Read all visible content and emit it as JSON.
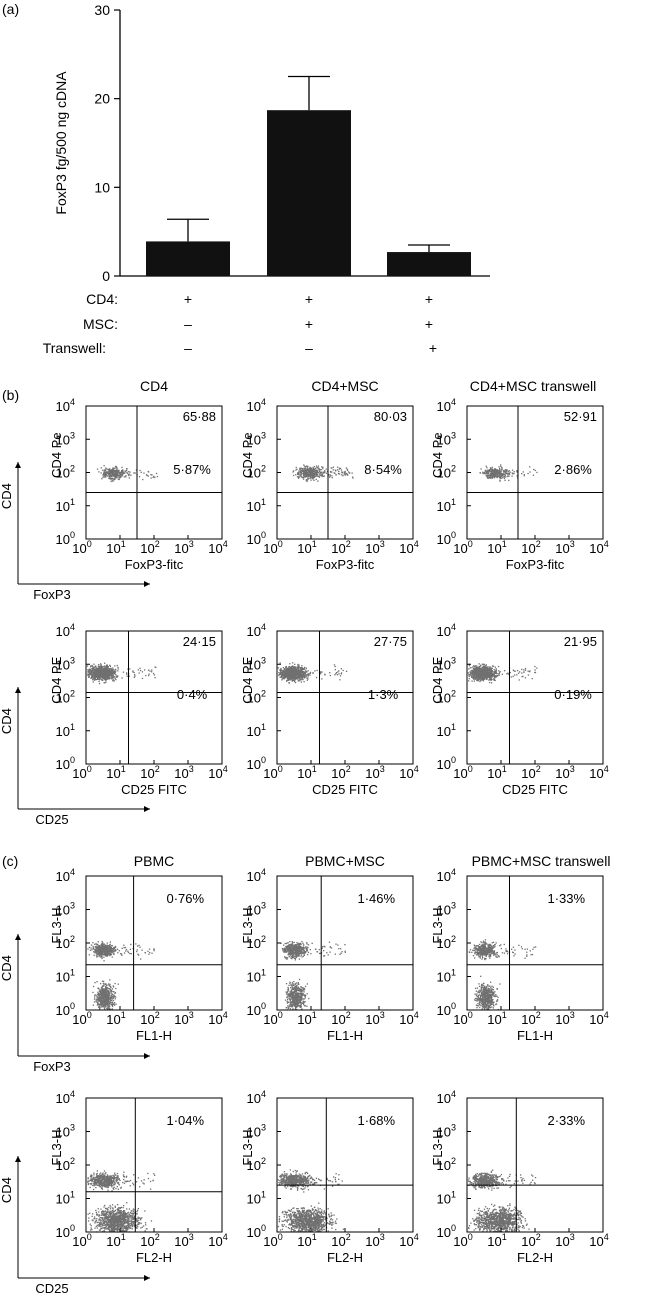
{
  "panel_a": {
    "label": "(a)",
    "chart_data": {
      "type": "bar",
      "ylabel": "FoxP3 fg/500 ng cDNA",
      "ylim": [
        0,
        30
      ],
      "yticks": [
        "0",
        "10",
        "20",
        "30"
      ],
      "yticks_values": [
        0,
        10,
        20,
        30
      ],
      "categories": [
        "CD4 alone",
        "CD4+MSC",
        "CD4+MSC transwell"
      ],
      "values": [
        3.9,
        18.7,
        2.7
      ],
      "errors": [
        2.5,
        3.8,
        0.8
      ],
      "bar_color": "#111111",
      "conditions": [
        {
          "label": "CD4:",
          "signs": [
            "+",
            "+",
            "+"
          ]
        },
        {
          "label": "MSC:",
          "signs": [
            "–",
            "+",
            "+"
          ]
        },
        {
          "label": "Transwell:",
          "signs": [
            "–",
            "–",
            "+"
          ]
        }
      ]
    }
  },
  "panel_b": {
    "label": "(b)",
    "titles": [
      "CD4",
      "CD4+MSC",
      "CD4+MSC  transwell"
    ],
    "rows": [
      {
        "ylabel": "CD4 Pe",
        "xlabel": "FoxP3-fitc",
        "outer_y": "CD4",
        "outer_x": "FoxP3",
        "plots": [
          {
            "ur_value": "65·88",
            "pct": "5·87%",
            "qx": 1.5,
            "qy": 1.4
          },
          {
            "ur_value": "80·03",
            "pct": "8·54%",
            "qx": 1.5,
            "qy": 1.4
          },
          {
            "ur_value": "52·91",
            "pct": "2·86%",
            "qx": 1.5,
            "qy": 1.4
          }
        ]
      },
      {
        "ylabel": "CD4 PE",
        "xlabel": "CD25 FITC",
        "outer_y": "CD4",
        "outer_x": "CD25",
        "plots": [
          {
            "ur_value": "24·15",
            "pct": "0·4%",
            "qx": 1.25,
            "qy": 2.15
          },
          {
            "ur_value": "27·75",
            "pct": "1·3%",
            "qx": 1.25,
            "qy": 2.15
          },
          {
            "ur_value": "21·95",
            "pct": "0·19%",
            "qx": 1.25,
            "qy": 2.15
          }
        ]
      }
    ]
  },
  "panel_c": {
    "label": "(c)",
    "titles": [
      "PBMC",
      "PBMC+MSC",
      "PBMC+MSC transwell"
    ],
    "rows": [
      {
        "ylabel": "FL3-H",
        "xlabel": "FL1-H",
        "outer_y": "CD4",
        "outer_x": "FoxP3",
        "plots": [
          {
            "pct": "0·76%",
            "qx": 1.4,
            "qy": 1.35
          },
          {
            "pct": "1·46%",
            "qx": 1.3,
            "qy": 1.35
          },
          {
            "pct": "1·33%",
            "qx": 1.25,
            "qy": 1.35
          }
        ]
      },
      {
        "ylabel": "FL3-H",
        "xlabel": "FL2-H",
        "outer_y": "CD4",
        "outer_x": "CD25",
        "plots": [
          {
            "pct": "1·04%",
            "qx": 1.45,
            "qy": 1.2
          },
          {
            "pct": "1·68%",
            "qx": 1.45,
            "qy": 1.4
          },
          {
            "pct": "2·33%",
            "qx": 1.45,
            "qy": 1.4
          }
        ]
      }
    ]
  },
  "flow_axis": {
    "range_decades": [
      0,
      4
    ],
    "tick_labels": [
      {
        "base": "10",
        "exp": "0"
      },
      {
        "base": "10",
        "exp": "1"
      },
      {
        "base": "10",
        "exp": "2"
      },
      {
        "base": "10",
        "exp": "3"
      },
      {
        "base": "10",
        "exp": "4"
      }
    ]
  },
  "colors": {
    "dots": "#707070",
    "lines": "#000000"
  }
}
